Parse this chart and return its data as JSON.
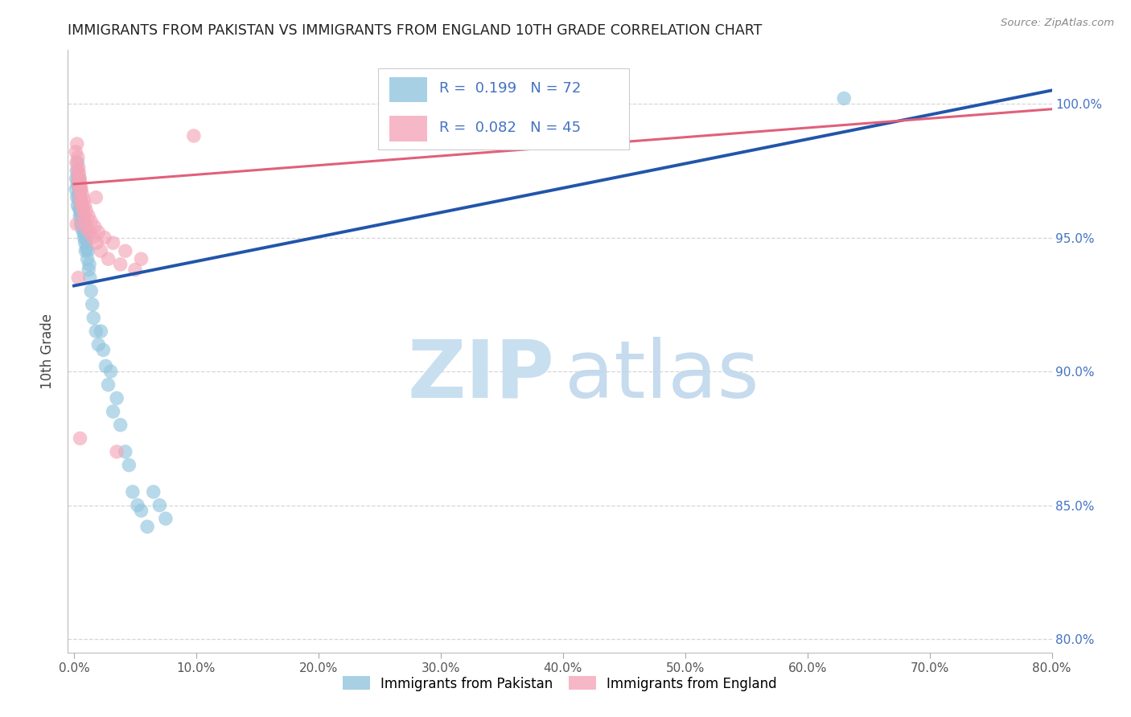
{
  "title": "IMMIGRANTS FROM PAKISTAN VS IMMIGRANTS FROM ENGLAND 10TH GRADE CORRELATION CHART",
  "source": "Source: ZipAtlas.com",
  "ylabel": "10th Grade",
  "y_ticks": [
    80.0,
    85.0,
    90.0,
    95.0,
    100.0
  ],
  "x_ticks": [
    0.0,
    10.0,
    20.0,
    30.0,
    40.0,
    50.0,
    60.0,
    70.0,
    80.0
  ],
  "xlim": [
    -0.5,
    80.0
  ],
  "ylim": [
    79.5,
    102.0
  ],
  "legend_blue_label": "Immigrants from Pakistan",
  "legend_pink_label": "Immigrants from England",
  "R_blue": 0.199,
  "N_blue": 72,
  "R_pink": 0.082,
  "N_pink": 45,
  "blue_color": "#92c5de",
  "pink_color": "#f4a6b8",
  "line_blue_color": "#2255aa",
  "line_pink_color": "#e0607a",
  "watermark_zip_color": "#c8dff0",
  "watermark_atlas_color": "#c0d8ec",
  "blue_line_x": [
    0.0,
    80.0
  ],
  "blue_line_y": [
    93.2,
    100.5
  ],
  "pink_line_x": [
    0.0,
    80.0
  ],
  "pink_line_y": [
    97.0,
    99.8
  ],
  "pakistan_x": [
    0.15,
    0.18,
    0.22,
    0.25,
    0.28,
    0.3,
    0.3,
    0.32,
    0.35,
    0.35,
    0.38,
    0.4,
    0.4,
    0.42,
    0.45,
    0.45,
    0.48,
    0.5,
    0.5,
    0.52,
    0.55,
    0.55,
    0.58,
    0.6,
    0.6,
    0.62,
    0.65,
    0.65,
    0.68,
    0.7,
    0.7,
    0.72,
    0.75,
    0.78,
    0.8,
    0.82,
    0.85,
    0.88,
    0.9,
    0.92,
    0.95,
    1.0,
    1.0,
    1.05,
    1.1,
    1.15,
    1.2,
    1.25,
    1.3,
    1.4,
    1.5,
    1.6,
    1.8,
    2.0,
    2.2,
    2.4,
    2.6,
    2.8,
    3.0,
    3.2,
    3.5,
    3.8,
    4.2,
    4.5,
    4.8,
    5.2,
    5.5,
    6.0,
    6.5,
    7.0,
    7.5,
    63.0
  ],
  "pakistan_y": [
    96.8,
    97.2,
    97.5,
    96.5,
    97.0,
    97.8,
    96.2,
    97.3,
    96.6,
    97.1,
    96.9,
    96.4,
    97.0,
    96.1,
    96.7,
    97.2,
    95.8,
    96.5,
    96.0,
    96.8,
    95.5,
    96.3,
    95.8,
    96.2,
    95.6,
    95.9,
    95.5,
    96.0,
    95.3,
    95.7,
    96.1,
    95.4,
    95.8,
    95.2,
    95.6,
    95.0,
    95.4,
    95.1,
    94.8,
    95.2,
    94.5,
    94.9,
    95.3,
    94.6,
    94.2,
    94.5,
    93.8,
    94.0,
    93.5,
    93.0,
    92.5,
    92.0,
    91.5,
    91.0,
    91.5,
    90.8,
    90.2,
    89.5,
    90.0,
    88.5,
    89.0,
    88.0,
    87.0,
    86.5,
    85.5,
    85.0,
    84.8,
    84.2,
    85.5,
    85.0,
    84.5,
    100.2
  ],
  "england_x": [
    0.15,
    0.2,
    0.25,
    0.3,
    0.32,
    0.35,
    0.38,
    0.4,
    0.42,
    0.45,
    0.48,
    0.5,
    0.55,
    0.58,
    0.6,
    0.65,
    0.7,
    0.75,
    0.8,
    0.85,
    0.9,
    0.95,
    1.0,
    1.1,
    1.2,
    1.3,
    1.4,
    1.55,
    1.7,
    1.85,
    2.0,
    2.2,
    2.5,
    2.8,
    3.2,
    3.8,
    4.2,
    5.0,
    5.5,
    9.8,
    0.22,
    0.35,
    0.5,
    1.8,
    3.5
  ],
  "england_y": [
    98.2,
    97.8,
    98.5,
    97.5,
    98.0,
    97.2,
    97.6,
    97.0,
    97.4,
    96.8,
    97.2,
    96.5,
    97.0,
    96.3,
    96.8,
    96.2,
    96.6,
    96.0,
    96.4,
    95.8,
    96.2,
    95.5,
    96.0,
    95.3,
    95.8,
    95.2,
    95.6,
    95.0,
    95.4,
    94.8,
    95.2,
    94.5,
    95.0,
    94.2,
    94.8,
    94.0,
    94.5,
    93.8,
    94.2,
    98.8,
    95.5,
    93.5,
    87.5,
    96.5,
    87.0
  ]
}
